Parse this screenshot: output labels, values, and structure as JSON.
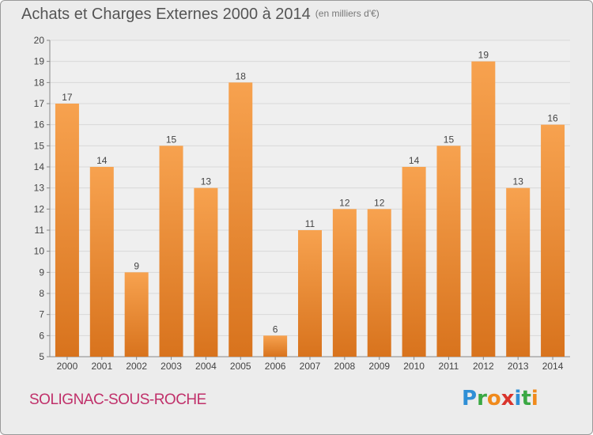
{
  "header": {
    "title": "Achats et Charges Externes 2000 à 2014",
    "subtitle": "(en milliers d'€)"
  },
  "footer": {
    "commune": "SOLIGNAC-SOUS-ROCHE",
    "logo": "Proxiti",
    "logo_letters": [
      {
        "ch": "P",
        "color": "#2f8fd6"
      },
      {
        "ch": "r",
        "color": "#3aa843"
      },
      {
        "ch": "o",
        "color": "#f08a1c"
      },
      {
        "ch": "x",
        "color": "#d9342c"
      },
      {
        "ch": "i",
        "color": "#2f8fd6"
      },
      {
        "ch": "t",
        "color": "#3aa843"
      },
      {
        "ch": "i",
        "color": "#f08a1c"
      }
    ]
  },
  "colors": {
    "bar_light": "#f7a24f",
    "bar_dark": "#d8731d",
    "background": "#ececec",
    "grid": "#d8d8d8",
    "commune": "#c0306a"
  },
  "chart_data": {
    "type": "bar",
    "categories": [
      "2000",
      "2001",
      "2002",
      "2003",
      "2004",
      "2005",
      "2006",
      "2007",
      "2008",
      "2009",
      "2010",
      "2011",
      "2012",
      "2013",
      "2014"
    ],
    "values": [
      17,
      14,
      9,
      15,
      13,
      18,
      6,
      11,
      12,
      12,
      14,
      15,
      19,
      13,
      16
    ],
    "ylim": [
      5,
      20
    ],
    "yticks": [
      5,
      6,
      7,
      8,
      9,
      10,
      11,
      12,
      13,
      14,
      15,
      16,
      17,
      18,
      19,
      20
    ],
    "grid": true
  }
}
